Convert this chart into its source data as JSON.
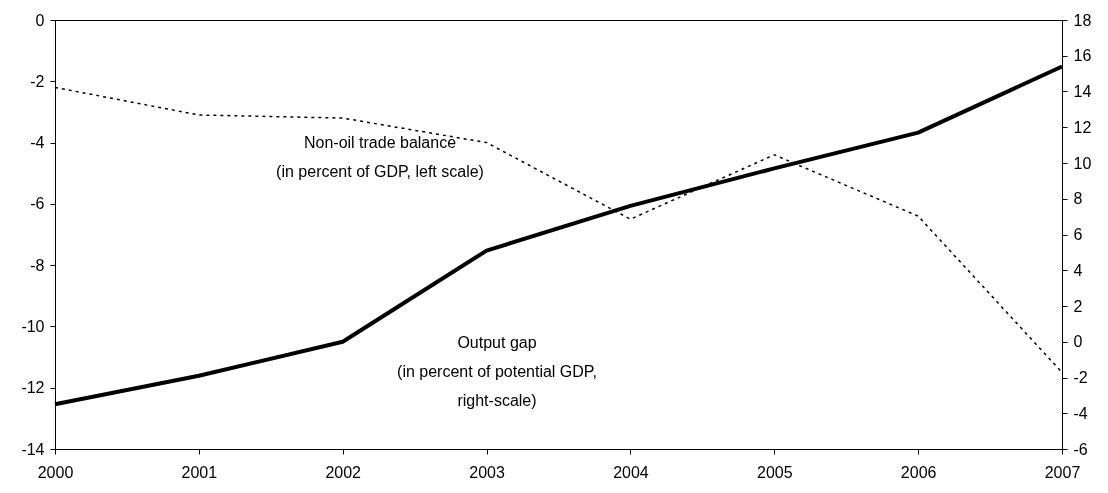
{
  "chart_data": {
    "type": "line",
    "x": [
      2000,
      2001,
      2002,
      2003,
      2004,
      2005,
      2006,
      2007
    ],
    "series": [
      {
        "name": "Non-oil trade balance\n(in percent of GDP, left scale)",
        "color": "#000000",
        "line_style": "dotted",
        "values": [
          -2.2,
          -3.1,
          -3.2,
          -4.0,
          -6.5,
          -4.4,
          -6.4,
          -11.5
        ]
      },
      {
        "name": "Output gap\n(in percent of potential GDP,\nright-scale)",
        "color": "#000000",
        "line_style": "solid",
        "axis": "y2",
        "values": [
          -3.5,
          -1.9,
          0.0,
          5.1,
          7.6,
          9.7,
          11.7,
          15.4
        ]
      }
    ],
    "xlim": [
      2000,
      2007
    ],
    "xticks": [
      2000,
      2001,
      2002,
      2003,
      2004,
      2005,
      2006,
      2007
    ],
    "ylim": [
      -14,
      0
    ],
    "yticks": [
      -14,
      -12,
      -10,
      -8,
      -6,
      -4,
      -2,
      0
    ],
    "y2lim": [
      -6,
      18
    ],
    "y2ticks": [
      -6,
      -4,
      -2,
      0,
      2,
      4,
      6,
      8,
      10,
      12,
      14,
      16,
      18
    ]
  }
}
